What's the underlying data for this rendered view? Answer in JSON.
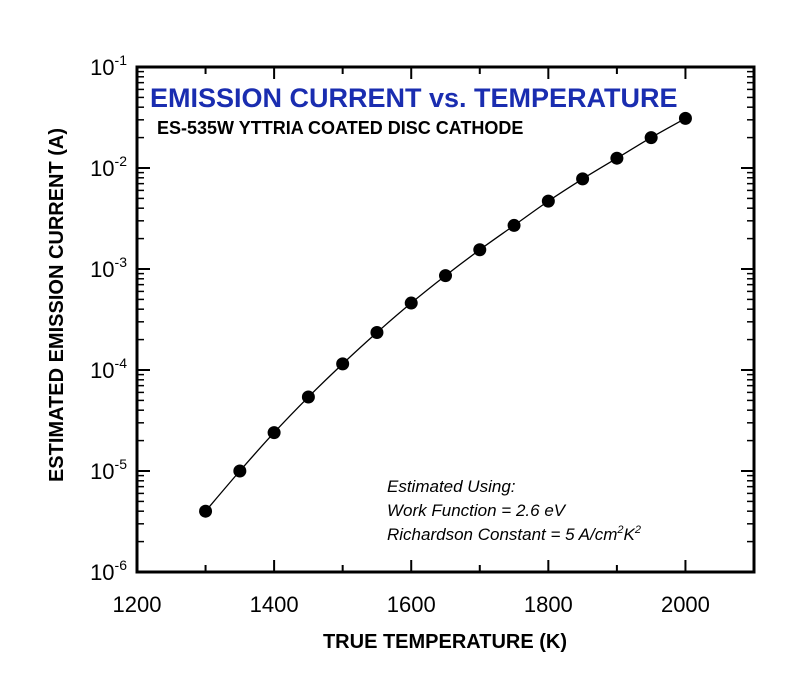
{
  "chart_data": {
    "type": "line",
    "title": "EMISSION CURRENT vs. TEMPERATURE",
    "subtitle": "ES-535W YTTRIA COATED DISC CATHODE",
    "xlabel": "TRUE TEMPERATURE (K)",
    "ylabel": "ESTIMATED EMISSION CURRENT (A)",
    "xlim": [
      1200,
      2100
    ],
    "ylim": [
      1e-06,
      0.1
    ],
    "yscale": "log",
    "x_ticks": [
      1200,
      1400,
      1600,
      1800,
      2000
    ],
    "x_tick_labels": [
      "1200",
      "1400",
      "1600",
      "1800",
      "2000"
    ],
    "y_ticks": [
      {
        "value": 0.1,
        "base": "10",
        "exp": "-1"
      },
      {
        "value": 0.01,
        "base": "10",
        "exp": "-2"
      },
      {
        "value": 0.001,
        "base": "10",
        "exp": "-3"
      },
      {
        "value": 0.0001,
        "base": "10",
        "exp": "-4"
      },
      {
        "value": 1e-05,
        "base": "10",
        "exp": "-5"
      },
      {
        "value": 1e-06,
        "base": "10",
        "exp": "-6"
      }
    ],
    "grid": false,
    "title_color": "#1a2db0",
    "marker_color": "#000000",
    "series": [
      {
        "x": [
          1300,
          1350,
          1400,
          1450,
          1500,
          1550,
          1600,
          1650,
          1700,
          1750,
          1800,
          1850,
          1900,
          1950,
          2000
        ],
        "y": [
          4e-06,
          1e-05,
          2.4e-05,
          5.4e-05,
          0.000115,
          0.000235,
          0.00046,
          0.00086,
          0.00155,
          0.0027,
          0.0047,
          0.0078,
          0.0125,
          0.02,
          0.031
        ]
      }
    ],
    "annotation": {
      "line1": "Estimated Using:",
      "line2": "Work Function = 2.6 eV",
      "line3_prefix": "Richardson Constant = 5 A/cm",
      "line3_sup1": "2",
      "line3_mid": "K",
      "line3_sup2": "2"
    }
  }
}
